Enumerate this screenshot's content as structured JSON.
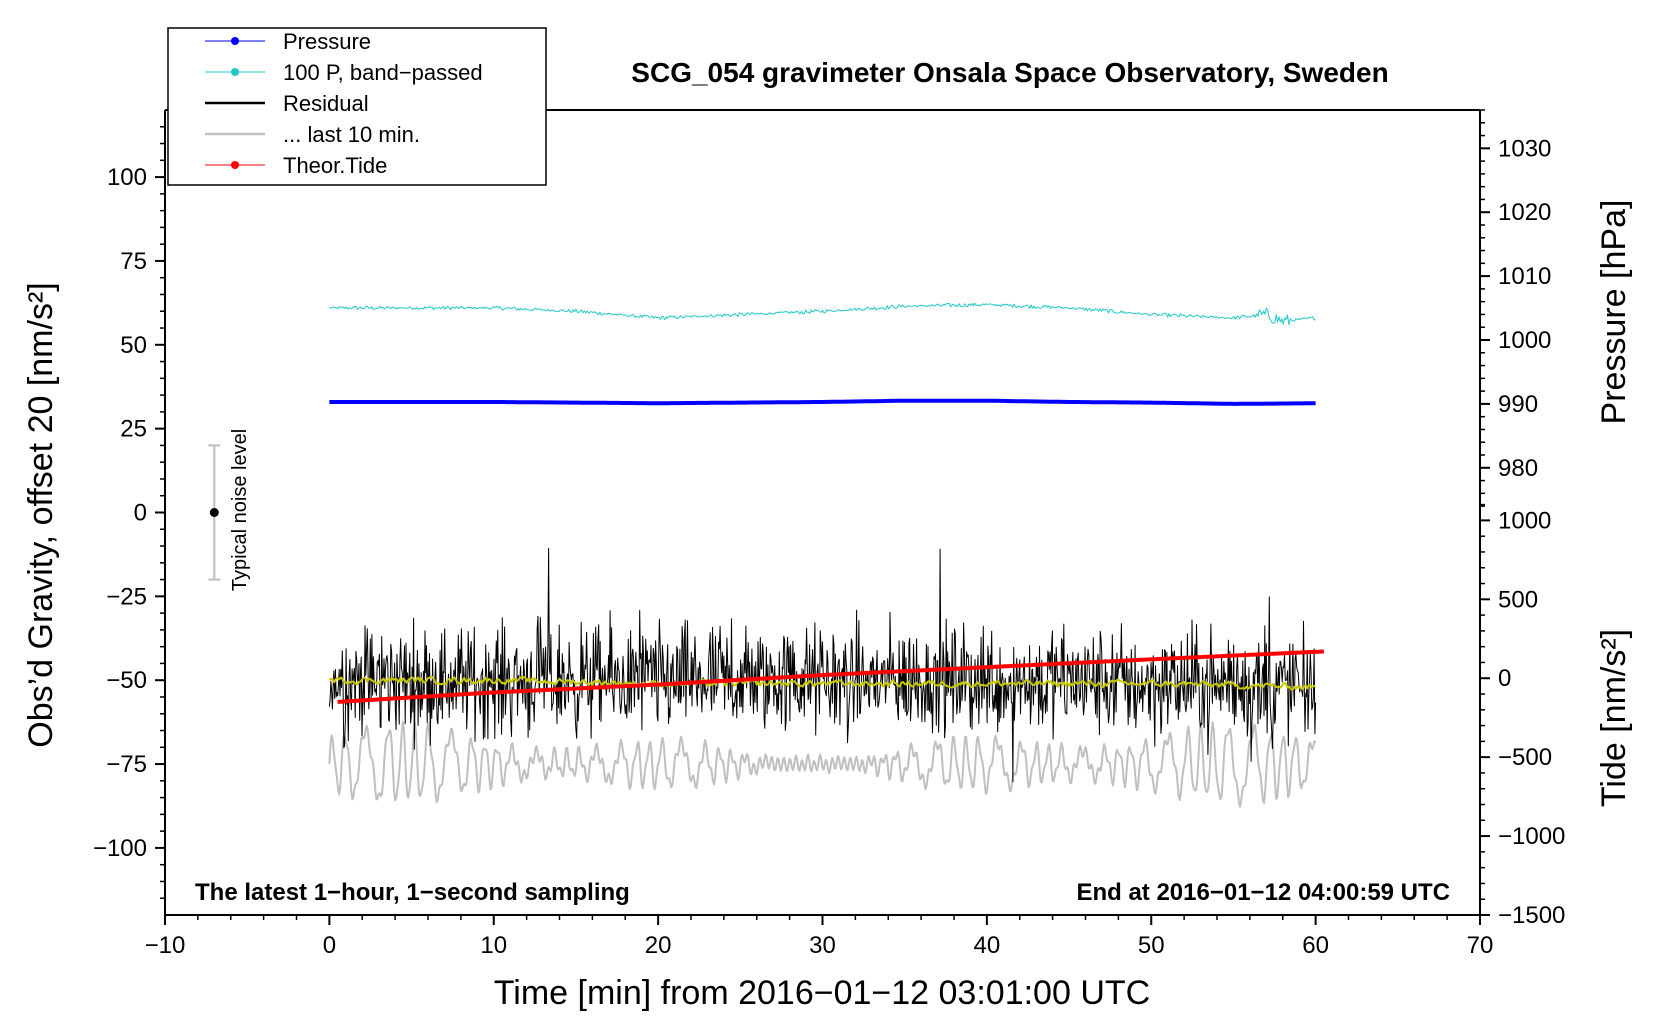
{
  "chart_data": {
    "type": "line",
    "title": "SCG_054 gravimeter Onsala Space Observatory, Sweden",
    "xlabel": "Time [min] from 2016−01−12 03:01:00 UTC",
    "ylabel_left": "Obs’d Gravity, offset 20 [nm/s²]",
    "ylabel_pressure": "Pressure [hPa]",
    "ylabel_tide": "Tide [nm/s²]",
    "xlim": [
      -10,
      70
    ],
    "ylim_left": [
      -120,
      120
    ],
    "ylim_pressure": [
      910,
      1036
    ],
    "ylim_tide": [
      -1500,
      3600
    ],
    "x_ticks": [
      -10,
      0,
      10,
      20,
      30,
      40,
      50,
      60,
      70
    ],
    "x_tick_labels": [
      "−10",
      "0",
      "10",
      "20",
      "30",
      "40",
      "50",
      "60",
      "70"
    ],
    "left_ticks": [
      -100,
      -75,
      -50,
      -25,
      0,
      25,
      50,
      75,
      100
    ],
    "left_tick_labels": [
      "−100",
      "−75",
      "−50",
      "−25",
      "0",
      "25",
      "50",
      "75",
      "100"
    ],
    "pressure_ticks": [
      980,
      990,
      1000,
      1010,
      1020,
      1030
    ],
    "pressure_tick_labels": [
      "980",
      "990",
      "1000",
      "1010",
      "1020",
      "1030"
    ],
    "tide_ticks": [
      -1500,
      -1000,
      -500,
      0,
      500,
      1000
    ],
    "tide_tick_labels": [
      "−1500",
      "−1000",
      "−500",
      "0",
      "500",
      "1000"
    ],
    "annotations": {
      "bottom_left": "The latest 1−hour, 1−second sampling",
      "bottom_right": "End at 2016−01−12 04:00:59 UTC",
      "noise_label": "Typical noise level"
    },
    "noise_bar": {
      "x": -7,
      "center": 0,
      "low": -20,
      "high": 20
    },
    "legend": [
      {
        "label": "Pressure",
        "color": "#0000ff",
        "marker": "dot"
      },
      {
        "label": "100 P, band−passed",
        "color": "#20c8c8",
        "marker": "dot"
      },
      {
        "label": "Residual",
        "color": "#000000",
        "marker": "none"
      },
      {
        "label": "... last 10 min.",
        "color": "#c0c0c0",
        "marker": "none"
      },
      {
        "label": "Theor.Tide",
        "color": "#ff0000",
        "marker": "dot"
      }
    ],
    "series": [
      {
        "name": "Pressure",
        "axis": "pressure",
        "color": "#0000ff",
        "x": [
          0,
          10,
          20,
          30,
          35,
          40,
          45,
          50,
          55,
          60
        ],
        "y": [
          990.3,
          990.3,
          990.1,
          990.3,
          990.5,
          990.5,
          990.3,
          990.2,
          990.0,
          990.1
        ]
      },
      {
        "name": "100 P, band−passed",
        "axis": "left",
        "color": "#20c8c8",
        "noise": 1.2,
        "x": [
          0,
          5,
          10,
          15,
          20,
          25,
          30,
          35,
          40,
          45,
          50,
          55,
          57,
          58,
          60
        ],
        "y": [
          61,
          61,
          61,
          60,
          58,
          59,
          60,
          61.5,
          62,
          61,
          59,
          58,
          59,
          57,
          58
        ]
      },
      {
        "name": "Residual",
        "axis": "left",
        "color": "#000000",
        "noise": 8,
        "x": [
          0,
          10,
          20,
          30,
          40,
          50,
          60
        ],
        "y": [
          -50,
          -50,
          -50,
          -50,
          -50,
          -51,
          -52
        ]
      },
      {
        "name": "Residual smoothed",
        "axis": "left",
        "color": "#c8c800",
        "noise": 0.8,
        "x": [
          0,
          10,
          20,
          30,
          40,
          50,
          60
        ],
        "y": [
          -50,
          -50,
          -51,
          -51,
          -51,
          -51,
          -52
        ]
      },
      {
        "name": "... last 10 min.",
        "axis": "left",
        "color": "#c0c0c0",
        "x": [
          0,
          20,
          40,
          60
        ],
        "y": [
          -75,
          -75,
          -75,
          -75
        ]
      },
      {
        "name": "Theor.Tide",
        "axis": "tide",
        "color": "#ff0000",
        "x": [
          0.5,
          10,
          20,
          30,
          40,
          50,
          60.5
        ],
        "y": [
          -150,
          -90,
          -40,
          20,
          70,
          120,
          170
        ]
      }
    ]
  }
}
